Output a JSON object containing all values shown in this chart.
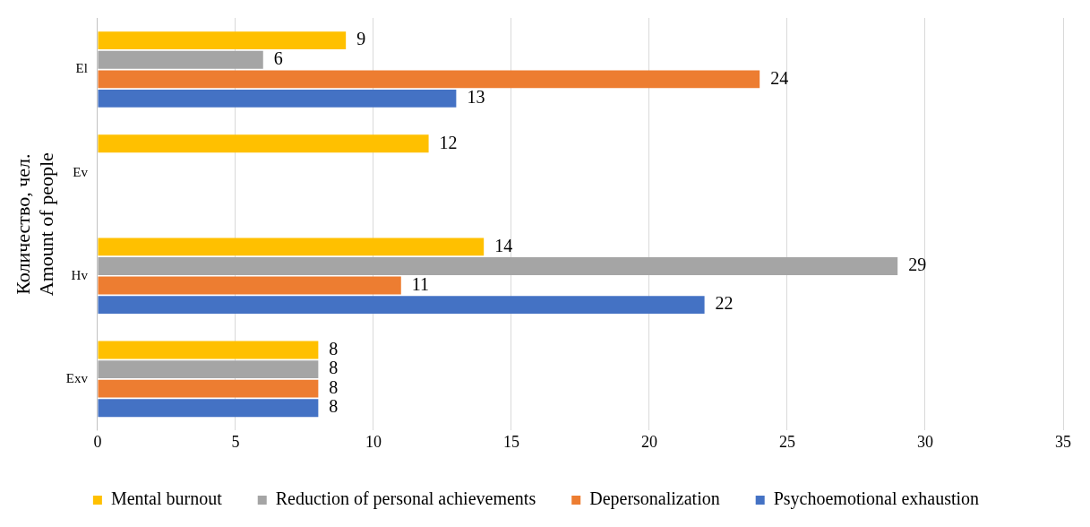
{
  "chart_data": {
    "type": "bar",
    "orientation": "horizontal",
    "ylabel": "Количество, чел.\nAmount of people",
    "categories": [
      "El",
      "Ev",
      "Hv",
      "Exv"
    ],
    "series": [
      {
        "name": "Mental burnout",
        "color": "#ffc000",
        "values": [
          9,
          12,
          14,
          8
        ]
      },
      {
        "name": "Reduction of personal achievements",
        "color": "#a5a5a5",
        "values": [
          6,
          null,
          29,
          8
        ]
      },
      {
        "name": "Depersonalization",
        "color": "#ed7d31",
        "values": [
          24,
          null,
          11,
          8
        ]
      },
      {
        "name": "Psychoemotional exhaustion",
        "color": "#4472c4",
        "values": [
          13,
          null,
          22,
          8
        ]
      }
    ],
    "xlim": [
      0,
      35
    ],
    "xticks": [
      0,
      5,
      10,
      15,
      20,
      25,
      30,
      35
    ],
    "grid": "x",
    "legend": "bottom",
    "data_labels": true
  }
}
